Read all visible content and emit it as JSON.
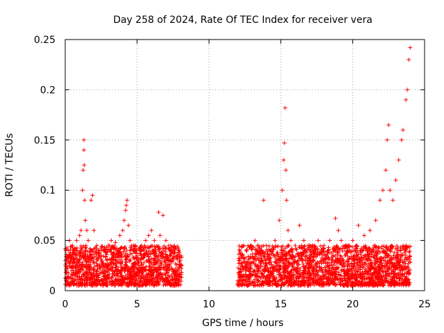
{
  "chart_data": {
    "type": "scatter",
    "title": "Day 258 of 2024, Rate Of TEC Index for receiver vera",
    "xlabel": "GPS time / hours",
    "ylabel": "ROTI / TECUs",
    "xlim": [
      0,
      25
    ],
    "ylim": [
      0,
      0.25
    ],
    "xticks": [
      0,
      5,
      10,
      15,
      20,
      25
    ],
    "xtick_labels": [
      "0",
      "5",
      "10",
      "15",
      "20",
      "25"
    ],
    "yticks": [
      0,
      0.05,
      0.1,
      0.15,
      0.2,
      0.25
    ],
    "ytick_labels": [
      "0",
      "0.05",
      "0.1",
      "0.15",
      "0.2",
      "0.25"
    ],
    "grid": true,
    "marker": "+",
    "series": [
      {
        "name": "ROTI",
        "color": "#ff0000",
        "x": [
          0.1,
          0.2,
          0.3,
          0.4,
          0.5,
          0.6,
          0.8,
          1.0,
          1.1,
          1.2,
          1.25,
          1.3,
          1.3,
          1.32,
          1.35,
          1.4,
          1.5,
          1.6,
          1.8,
          1.9,
          2.0,
          2.2,
          2.5,
          2.8,
          3.0,
          3.2,
          3.5,
          3.8,
          4.0,
          4.1,
          4.2,
          4.25,
          4.3,
          4.4,
          4.5,
          4.8,
          5.0,
          5.3,
          5.6,
          5.8,
          6.0,
          6.2,
          6.5,
          6.6,
          6.8,
          7.0,
          7.2,
          7.4,
          7.6,
          7.8,
          8.0,
          12.1,
          12.3,
          12.6,
          12.9,
          13.2,
          13.5,
          13.8,
          14.0,
          14.3,
          14.6,
          14.9,
          15.1,
          15.2,
          15.25,
          15.3,
          15.35,
          15.4,
          15.5,
          15.7,
          16.0,
          16.3,
          16.6,
          17.0,
          17.3,
          17.6,
          18.0,
          18.4,
          18.8,
          19.0,
          19.2,
          19.6,
          20.0,
          20.4,
          20.8,
          21.2,
          21.6,
          21.9,
          22.1,
          22.3,
          22.4,
          22.5,
          22.6,
          22.8,
          23.0,
          23.2,
          23.4,
          23.5,
          23.7,
          23.8,
          23.9,
          24.0
        ],
        "y": [
          0.03,
          0.04,
          0.05,
          0.035,
          0.045,
          0.038,
          0.05,
          0.055,
          0.06,
          0.1,
          0.12,
          0.14,
          0.15,
          0.125,
          0.09,
          0.07,
          0.06,
          0.05,
          0.09,
          0.095,
          0.06,
          0.045,
          0.04,
          0.038,
          0.045,
          0.05,
          0.048,
          0.055,
          0.06,
          0.07,
          0.08,
          0.085,
          0.09,
          0.065,
          0.05,
          0.045,
          0.04,
          0.045,
          0.05,
          0.055,
          0.06,
          0.05,
          0.078,
          0.055,
          0.075,
          0.05,
          0.045,
          0.04,
          0.038,
          0.035,
          0.03,
          0.03,
          0.035,
          0.04,
          0.045,
          0.05,
          0.042,
          0.09,
          0.045,
          0.04,
          0.05,
          0.07,
          0.1,
          0.13,
          0.147,
          0.182,
          0.12,
          0.09,
          0.06,
          0.05,
          0.045,
          0.065,
          0.05,
          0.045,
          0.04,
          0.05,
          0.045,
          0.05,
          0.072,
          0.06,
          0.05,
          0.045,
          0.05,
          0.065,
          0.055,
          0.06,
          0.07,
          0.09,
          0.1,
          0.12,
          0.15,
          0.165,
          0.1,
          0.09,
          0.11,
          0.13,
          0.15,
          0.16,
          0.19,
          0.2,
          0.23,
          0.242
        ]
      }
    ],
    "band_spans": [
      [
        0.0,
        8.1
      ],
      [
        12.0,
        24.0
      ]
    ],
    "band_range": [
      0.005,
      0.045
    ]
  }
}
